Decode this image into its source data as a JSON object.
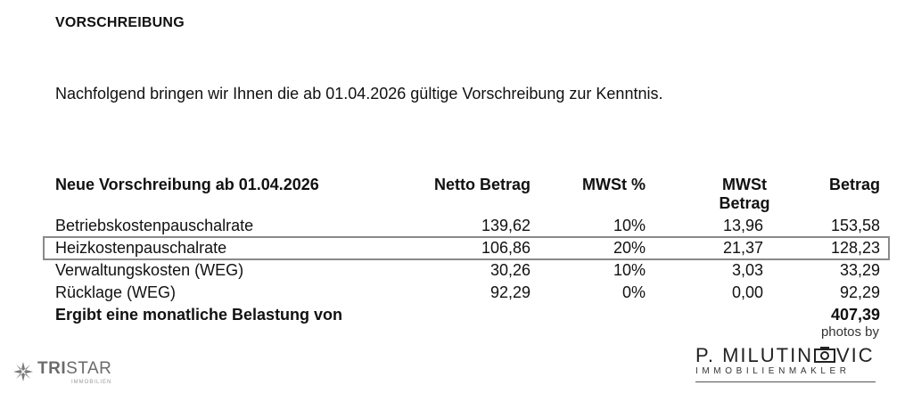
{
  "document": {
    "heading": "VORSCHREIBUNG",
    "intro": "Nachfolgend bringen wir Ihnen die ab 01.04.2026 gültige Vorschreibung zur Kenntnis."
  },
  "table": {
    "headers": [
      "Neue Vorschreibung ab 01.04.2026",
      "Netto Betrag",
      "MWSt %",
      "MWSt Betrag",
      "Betrag"
    ],
    "rows": [
      [
        "Betriebskostenpauschalrate",
        "139,62",
        "10%",
        "13,96",
        "153,58"
      ],
      [
        "Heizkostenpauschalrate",
        "106,86",
        "20%",
        "21,37",
        "128,23"
      ],
      [
        "Verwaltungskosten (WEG)",
        "30,26",
        "10%",
        "3,03",
        "33,29"
      ],
      [
        "Rücklage (WEG)",
        "92,29",
        "0%",
        "0,00",
        "92,29"
      ]
    ],
    "total_label": "Ergibt eine monatliche Belastung von",
    "total_value": "407,39",
    "highlight_color": "#8a8a8a"
  },
  "logos": {
    "tristar": {
      "name_bold": "TRI",
      "name_rest": "STAR",
      "sub": "IMMOBILIEN",
      "icon": "star-burst-icon"
    },
    "milutinovic": {
      "photos_by": "photos by",
      "name_a": "P. MILUTIN",
      "name_b": "VIC",
      "tagline": "IMMOBILIENMAKLER",
      "icon": "camera-icon"
    }
  }
}
